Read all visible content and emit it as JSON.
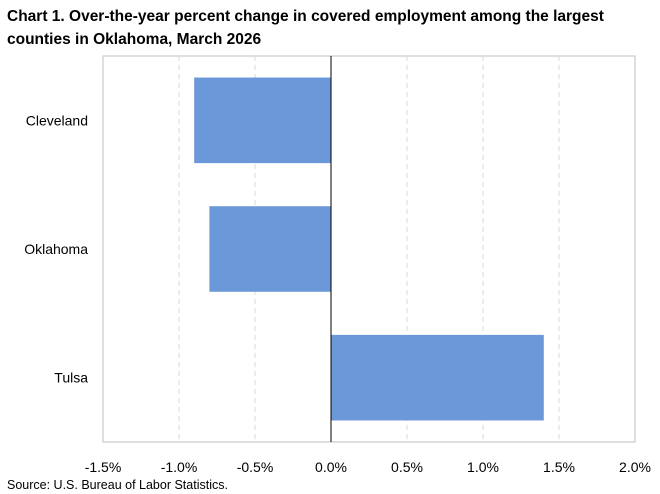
{
  "chart_data": {
    "type": "bar",
    "orientation": "horizontal",
    "title": "Chart 1. Over-the-year percent change in covered employment among the largest counties in Oklahoma, March 2026",
    "categories": [
      "Cleveland",
      "Oklahoma",
      "Tulsa"
    ],
    "values": [
      -0.9,
      -0.8,
      1.4
    ],
    "unit": "%",
    "xlim": [
      -1.5,
      2.0
    ],
    "xticks": [
      -1.5,
      -1.0,
      -0.5,
      0.0,
      0.5,
      1.0,
      1.5,
      2.0
    ],
    "xtick_labels": [
      "-1.5%",
      "-1.0%",
      "-0.5%",
      "0.0%",
      "0.5%",
      "1.0%",
      "1.5%",
      "2.0%"
    ],
    "grid": "vertical dashed",
    "legend": "none",
    "bar_color": "#6a98d8",
    "source": "Source: U.S. Bureau of Labor Statistics."
  }
}
